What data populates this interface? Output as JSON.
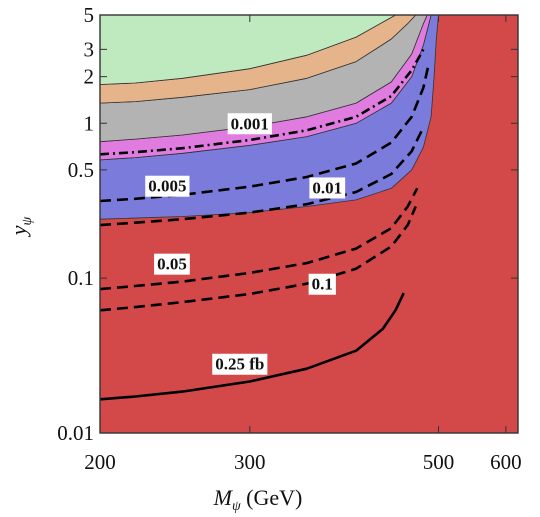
{
  "chart_data": {
    "type": "area",
    "xlabel": "M",
    "xlabel_sub": "ψ",
    "xlabel_unit": " (GeV)",
    "ylabel": "y",
    "ylabel_sub": "ψ",
    "x_scale": "log",
    "y_scale": "log",
    "xlim": [
      200,
      620
    ],
    "ylim": [
      0.01,
      5
    ],
    "x_ticks": [
      {
        "value": 200,
        "label": "200"
      },
      {
        "value": 300,
        "label": "300"
      },
      {
        "value": 500,
        "label": "500"
      },
      {
        "value": 600,
        "label": "600"
      }
    ],
    "y_ticks": [
      {
        "value": 0.01,
        "label": "0.01"
      },
      {
        "value": 0.1,
        "label": "0.1"
      },
      {
        "value": 0.5,
        "label": "0.5"
      },
      {
        "value": 1,
        "label": "1"
      },
      {
        "value": 2,
        "label": "2"
      },
      {
        "value": 3,
        "label": "3"
      },
      {
        "value": 5,
        "label": "5"
      }
    ],
    "regions": [
      {
        "color": "#d34848",
        "boundary": [
          [
            200,
            5
          ],
          [
            620,
            5
          ],
          [
            620,
            0.01
          ],
          [
            200,
            0.01
          ]
        ]
      },
      {
        "color": "#7b7bdb",
        "boundary": [
          [
            200,
            0.58
          ],
          [
            220,
            0.6
          ],
          [
            250,
            0.64
          ],
          [
            300,
            0.72
          ],
          [
            350,
            0.82
          ],
          [
            400,
            1.0
          ],
          [
            440,
            1.35
          ],
          [
            465,
            2.0
          ],
          [
            480,
            3.2
          ],
          [
            490,
            5
          ],
          [
            500,
            5
          ],
          [
            497,
            3.5
          ],
          [
            494,
            2.0
          ],
          [
            490,
            1.1
          ],
          [
            480,
            0.7
          ],
          [
            465,
            0.5
          ],
          [
            440,
            0.38
          ],
          [
            400,
            0.32
          ],
          [
            350,
            0.29
          ],
          [
            300,
            0.265
          ],
          [
            250,
            0.25
          ],
          [
            200,
            0.24
          ]
        ]
      },
      {
        "color": "#e07ce0",
        "boundary": [
          [
            200,
            0.76
          ],
          [
            220,
            0.79
          ],
          [
            250,
            0.84
          ],
          [
            300,
            0.95
          ],
          [
            350,
            1.1
          ],
          [
            400,
            1.35
          ],
          [
            440,
            1.85
          ],
          [
            465,
            2.8
          ],
          [
            480,
            4.4
          ],
          [
            485,
            5
          ],
          [
            490,
            5
          ],
          [
            480,
            3.2
          ],
          [
            465,
            2.0
          ],
          [
            440,
            1.35
          ],
          [
            400,
            1.0
          ],
          [
            350,
            0.82
          ],
          [
            300,
            0.72
          ],
          [
            250,
            0.64
          ],
          [
            220,
            0.6
          ],
          [
            200,
            0.58
          ]
        ]
      },
      {
        "color": "#b3b3b3",
        "boundary": [
          [
            200,
            1.35
          ],
          [
            220,
            1.38
          ],
          [
            250,
            1.47
          ],
          [
            300,
            1.65
          ],
          [
            350,
            1.95
          ],
          [
            400,
            2.5
          ],
          [
            440,
            3.5
          ],
          [
            460,
            4.4
          ],
          [
            470,
            5
          ],
          [
            485,
            5
          ],
          [
            480,
            4.4
          ],
          [
            465,
            2.8
          ],
          [
            440,
            1.85
          ],
          [
            400,
            1.35
          ],
          [
            350,
            1.1
          ],
          [
            300,
            0.95
          ],
          [
            250,
            0.84
          ],
          [
            220,
            0.79
          ],
          [
            200,
            0.76
          ]
        ]
      },
      {
        "color": "#e6b48a",
        "boundary": [
          [
            200,
            1.78
          ],
          [
            220,
            1.82
          ],
          [
            250,
            1.95
          ],
          [
            300,
            2.25
          ],
          [
            350,
            2.75
          ],
          [
            400,
            3.6
          ],
          [
            430,
            4.5
          ],
          [
            445,
            5
          ],
          [
            470,
            5
          ],
          [
            460,
            4.4
          ],
          [
            440,
            3.5
          ],
          [
            400,
            2.5
          ],
          [
            350,
            1.95
          ],
          [
            300,
            1.65
          ],
          [
            250,
            1.47
          ],
          [
            220,
            1.38
          ],
          [
            200,
            1.35
          ]
        ]
      },
      {
        "color": "#bfeabf",
        "boundary": [
          [
            200,
            5
          ],
          [
            445,
            5
          ],
          [
            430,
            4.5
          ],
          [
            400,
            3.6
          ],
          [
            350,
            2.75
          ],
          [
            300,
            2.25
          ],
          [
            250,
            1.95
          ],
          [
            220,
            1.82
          ],
          [
            200,
            1.78
          ]
        ]
      }
    ],
    "series": [
      {
        "name": "0.001",
        "dash": "dashdot",
        "x": [
          200,
          220,
          250,
          300,
          350,
          400,
          440,
          465,
          480
        ],
        "y": [
          0.63,
          0.65,
          0.69,
          0.78,
          0.9,
          1.1,
          1.5,
          2.2,
          3.0
        ]
      },
      {
        "name": "0.005",
        "dash": "dashed",
        "x": [
          200,
          220,
          250,
          300,
          350,
          400,
          440,
          465,
          480,
          486
        ],
        "y": [
          0.315,
          0.325,
          0.345,
          0.39,
          0.45,
          0.55,
          0.75,
          1.1,
          1.7,
          2.3
        ]
      },
      {
        "name": "0.01",
        "dash": "dashed",
        "x": [
          200,
          220,
          250,
          300,
          350,
          400,
          440,
          465,
          478
        ],
        "y": [
          0.22,
          0.228,
          0.24,
          0.265,
          0.3,
          0.36,
          0.47,
          0.66,
          0.9
        ]
      },
      {
        "name": "0.05",
        "dash": "dashed",
        "x": [
          200,
          220,
          250,
          300,
          350,
          400,
          440,
          460,
          472
        ],
        "y": [
          0.085,
          0.089,
          0.095,
          0.108,
          0.125,
          0.155,
          0.21,
          0.29,
          0.38
        ]
      },
      {
        "name": "0.1",
        "dash": "dashed",
        "x": [
          200,
          220,
          250,
          300,
          350,
          400,
          440,
          460,
          470
        ],
        "y": [
          0.062,
          0.065,
          0.07,
          0.079,
          0.092,
          0.115,
          0.16,
          0.22,
          0.29
        ]
      },
      {
        "name": "0.25 fb",
        "dash": "solid",
        "x": [
          200,
          220,
          250,
          300,
          350,
          400,
          430,
          445,
          455
        ],
        "y": [
          0.0165,
          0.0172,
          0.0185,
          0.0215,
          0.026,
          0.034,
          0.047,
          0.062,
          0.08
        ]
      }
    ],
    "annotations": [
      {
        "text": "0.001",
        "x": 300,
        "y": 1.0
      },
      {
        "text": "0.005",
        "x": 240,
        "y": 0.395
      },
      {
        "text": "0.01",
        "x": 370,
        "y": 0.385
      },
      {
        "text": "0.05",
        "x": 243,
        "y": 0.124
      },
      {
        "text": "0.1",
        "x": 365,
        "y": 0.092
      },
      {
        "text": "0.25 fb",
        "x": 292,
        "y": 0.028
      }
    ]
  }
}
